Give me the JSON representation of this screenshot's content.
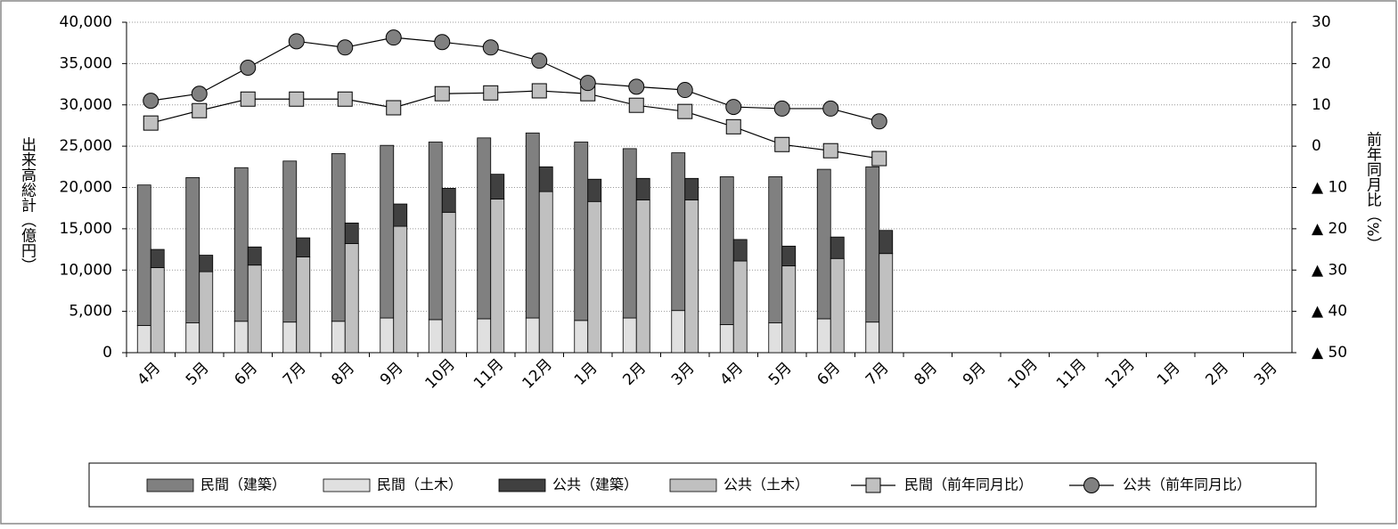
{
  "chart_data": {
    "type": "bar",
    "ylabel": "出来高総計（億円）",
    "y2label": "前年同月比（%）",
    "categories": [
      "4月",
      "5月",
      "6月",
      "7月",
      "8月",
      "9月",
      "10月",
      "11月",
      "12月",
      "1月",
      "2月",
      "3月",
      "4月",
      "5月",
      "6月",
      "7月",
      "8月",
      "9月",
      "10月",
      "11月",
      "12月",
      "1月",
      "2月",
      "3月"
    ],
    "series": [
      {
        "name": "民間（建築）",
        "color": "#808080",
        "stack": 0,
        "values": [
          17000,
          17600,
          18600,
          19500,
          20300,
          20900,
          21500,
          21900,
          22400,
          21600,
          20500,
          19100,
          17900,
          17700,
          18100,
          18800,
          null,
          null,
          null,
          null,
          null,
          null,
          null,
          null
        ]
      },
      {
        "name": "民間（土木）",
        "color": "#e0e0e0",
        "stack": 0,
        "values": [
          3300,
          3600,
          3800,
          3700,
          3800,
          4200,
          4000,
          4100,
          4200,
          3900,
          4200,
          5100,
          3400,
          3600,
          4100,
          3700,
          null,
          null,
          null,
          null,
          null,
          null,
          null,
          null
        ]
      },
      {
        "name": "公共（建築）",
        "color": "#404040",
        "stack": 1,
        "values": [
          2200,
          2000,
          2200,
          2300,
          2500,
          2700,
          2900,
          3000,
          3000,
          2700,
          2600,
          2600,
          2600,
          2400,
          2600,
          2800,
          null,
          null,
          null,
          null,
          null,
          null,
          null,
          null
        ]
      },
      {
        "name": "公共（土木）",
        "color": "#c0c0c0",
        "stack": 1,
        "values": [
          10300,
          9800,
          10600,
          11600,
          13200,
          15300,
          17000,
          18600,
          19500,
          18300,
          18500,
          18500,
          11100,
          10500,
          11400,
          12000,
          null,
          null,
          null,
          null,
          null,
          null,
          null,
          null
        ]
      },
      {
        "name": "民間（前年同月比）",
        "color": "#c0c0c0",
        "type": "line",
        "marker": "square",
        "axis": "y2",
        "values": [
          5.6,
          8.6,
          11.4,
          11.4,
          11.4,
          9.3,
          12.7,
          12.9,
          13.4,
          12.7,
          9.9,
          8.4,
          4.7,
          0.4,
          -1.1,
          -3.0,
          null,
          null,
          null,
          null,
          null,
          null,
          null,
          null
        ]
      },
      {
        "name": "公共（前年同月比）",
        "color": "#808080",
        "type": "line",
        "marker": "circle",
        "axis": "y2",
        "values": [
          11.0,
          12.7,
          19.0,
          25.4,
          23.9,
          26.3,
          25.2,
          23.9,
          20.7,
          15.3,
          14.4,
          13.6,
          9.5,
          9.1,
          9.1,
          6.0,
          null,
          null,
          null,
          null,
          null,
          null,
          null,
          null
        ]
      }
    ],
    "ylim": [
      0,
      40000
    ],
    "yticks": [
      0,
      {
        "value": 5000,
        "label": "5,000"
      },
      {
        "value": 10000,
        "label": "10,000"
      },
      {
        "value": 15000,
        "label": "15,000"
      },
      {
        "value": 20000,
        "label": "20,000"
      },
      {
        "value": 25000,
        "label": "25,000"
      },
      {
        "value": 30000,
        "label": "30,000"
      },
      {
        "value": 35000,
        "label": "35,000"
      },
      {
        "value": 40000,
        "label": "40,000"
      }
    ],
    "y2lim": [
      -50,
      30
    ],
    "y2ticks": [
      {
        "value": -50,
        "label": "▲ 50"
      },
      {
        "value": -40,
        "label": "▲ 40"
      },
      {
        "value": -30,
        "label": "▲ 30"
      },
      {
        "value": -20,
        "label": "▲ 20"
      },
      {
        "value": -10,
        "label": "▲ 10"
      },
      0,
      10,
      20,
      30
    ],
    "grid": true,
    "legend": "bottom"
  }
}
